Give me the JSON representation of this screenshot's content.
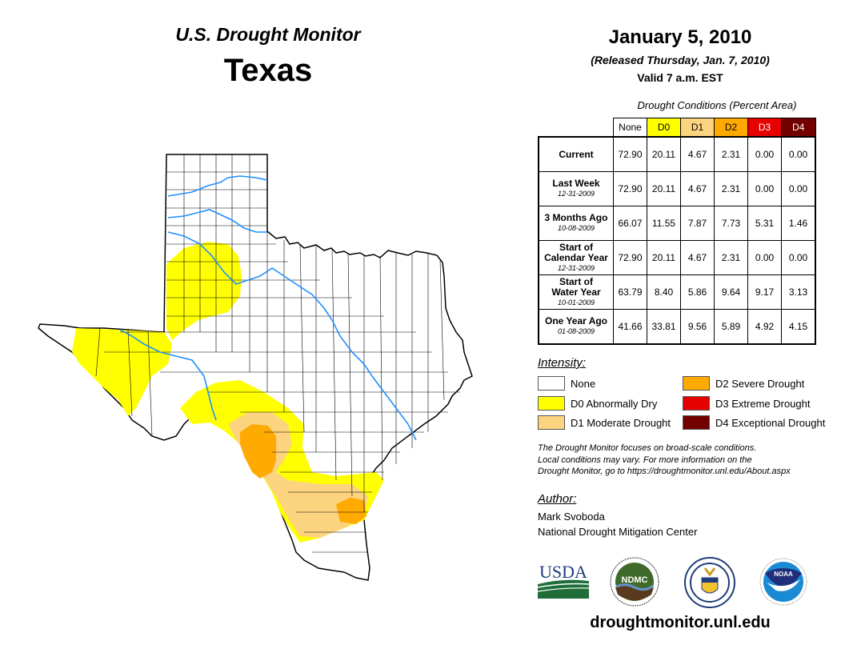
{
  "header": {
    "title": "U.S. Drought Monitor",
    "state": "Texas",
    "date": "January 5, 2010",
    "released": "(Released Thursday, Jan. 7, 2010)",
    "valid": "Valid 7 a.m. EST"
  },
  "table": {
    "title": "Drought Conditions (Percent Area)",
    "columns": [
      {
        "label": "None",
        "color": "#ffffff",
        "text_color": "#000000"
      },
      {
        "label": "D0",
        "color": "#ffff00",
        "text_color": "#000000"
      },
      {
        "label": "D1",
        "color": "#fcd37f",
        "text_color": "#000000"
      },
      {
        "label": "D2",
        "color": "#ffaa00",
        "text_color": "#000000"
      },
      {
        "label": "D3",
        "color": "#e60000",
        "text_color": "#ffffff"
      },
      {
        "label": "D4",
        "color": "#730000",
        "text_color": "#ffffff"
      }
    ],
    "rows": [
      {
        "label": "Current",
        "label2": "",
        "date": "",
        "values": [
          "72.90",
          "20.11",
          "4.67",
          "2.31",
          "0.00",
          "0.00"
        ]
      },
      {
        "label": "Last Week",
        "label2": "",
        "date": "12-31-2009",
        "values": [
          "72.90",
          "20.11",
          "4.67",
          "2.31",
          "0.00",
          "0.00"
        ]
      },
      {
        "label": "3 Months Ago",
        "label2": "",
        "date": "10-08-2009",
        "values": [
          "66.07",
          "11.55",
          "7.87",
          "7.73",
          "5.31",
          "1.46"
        ]
      },
      {
        "label": "Start of",
        "label2": "Calendar Year",
        "date": "12-31-2009",
        "values": [
          "72.90",
          "20.11",
          "4.67",
          "2.31",
          "0.00",
          "0.00"
        ]
      },
      {
        "label": "Start of",
        "label2": "Water Year",
        "date": "10-01-2009",
        "values": [
          "63.79",
          "8.40",
          "5.86",
          "9.64",
          "9.17",
          "3.13"
        ]
      },
      {
        "label": "One Year Ago",
        "label2": "",
        "date": "01-08-2009",
        "values": [
          "41.66",
          "33.81",
          "9.56",
          "5.89",
          "4.92",
          "4.15"
        ]
      }
    ]
  },
  "legend": {
    "title": "Intensity:",
    "items": [
      {
        "label": "None",
        "color": "#ffffff"
      },
      {
        "label": "D0 Abnormally Dry",
        "color": "#ffff00"
      },
      {
        "label": "D1 Moderate Drought",
        "color": "#fcd37f"
      },
      {
        "label": "D2 Severe Drought",
        "color": "#ffaa00"
      },
      {
        "label": "D3 Extreme Drought",
        "color": "#e60000"
      },
      {
        "label": "D4 Exceptional Drought",
        "color": "#730000"
      }
    ]
  },
  "note": {
    "line1": "The Drought Monitor focuses on broad-scale conditions.",
    "line2": "Local conditions may vary. For more information on the",
    "line3": "Drought Monitor, go to https://droughtmonitor.unl.edu/About.aspx"
  },
  "author": {
    "title": "Author:",
    "name": "Mark Svoboda",
    "org": "National Drought Mitigation Center"
  },
  "logos": {
    "usda": "USDA",
    "ndmc": "NDMC",
    "noaa": "NOAA"
  },
  "footer": {
    "website": "droughtmonitor.unl.edu"
  },
  "map": {
    "colors": {
      "border": "#000000",
      "river": "#1e90ff",
      "d0": "#ffff00",
      "d1": "#fcd37f",
      "d2": "#ffaa00"
    }
  }
}
